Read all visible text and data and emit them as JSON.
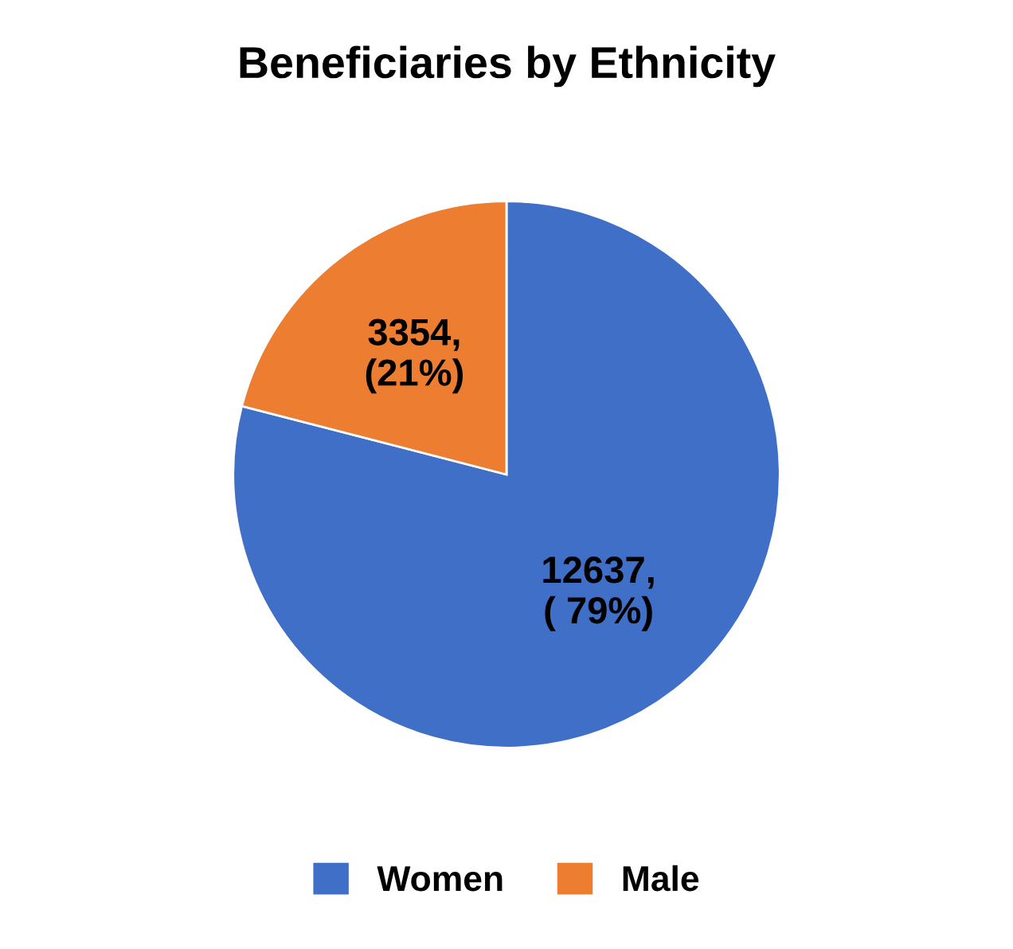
{
  "chart_data": {
    "type": "pie",
    "title": "Beneficiaries by Ethnicity",
    "categories": [
      "Women",
      "Male"
    ],
    "values": [
      12637,
      3354
    ],
    "colors": [
      "#3f6fc6",
      "#ed7d31"
    ],
    "value_labels": [
      "12637,\n( 79%)",
      "3354,\n(21%)"
    ],
    "legend": "bottom"
  }
}
